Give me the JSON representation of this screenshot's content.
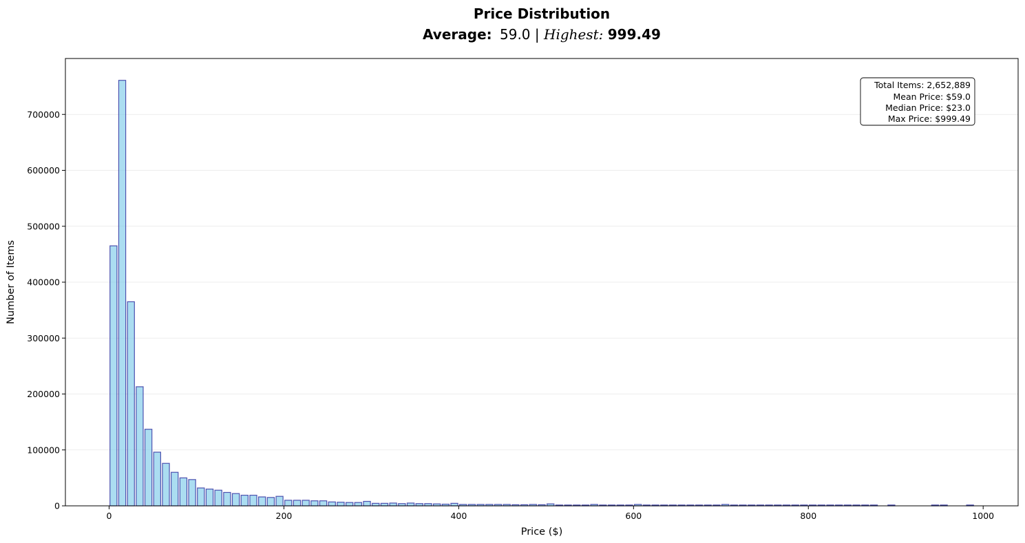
{
  "chart_data": {
    "type": "bar",
    "title": "Price Distribution",
    "subtitle": {
      "average_label": "Average:",
      "average_value": "59.0",
      "separator": "|",
      "highest_label": "Highest:",
      "highest_value": "999.49"
    },
    "xlabel": "Price ($)",
    "ylabel": "Number of Items",
    "xlim": [
      -50,
      1040
    ],
    "ylim": [
      0,
      800000
    ],
    "xticks": [
      0,
      200,
      400,
      600,
      800,
      1000
    ],
    "yticks": [
      0,
      100000,
      200000,
      300000,
      400000,
      500000,
      600000,
      700000
    ],
    "grid_axis": "y",
    "bar_width": 8,
    "x": [
      5,
      15,
      25,
      35,
      45,
      55,
      65,
      75,
      85,
      95,
      105,
      115,
      125,
      135,
      145,
      155,
      165,
      175,
      185,
      195,
      205,
      215,
      225,
      235,
      245,
      255,
      265,
      275,
      285,
      295,
      305,
      315,
      325,
      335,
      345,
      355,
      365,
      375,
      385,
      395,
      405,
      415,
      425,
      435,
      445,
      455,
      465,
      475,
      485,
      495,
      505,
      515,
      525,
      535,
      545,
      555,
      565,
      575,
      585,
      595,
      605,
      615,
      625,
      635,
      645,
      655,
      665,
      675,
      685,
      695,
      705,
      715,
      725,
      735,
      745,
      755,
      765,
      775,
      785,
      795,
      805,
      815,
      825,
      835,
      845,
      855,
      865,
      875,
      895,
      945,
      955,
      985
    ],
    "values": [
      465000,
      761000,
      365000,
      213000,
      137000,
      96000,
      76000,
      60000,
      50000,
      47000,
      32000,
      30000,
      28000,
      24000,
      22000,
      19000,
      19000,
      16000,
      15000,
      17000,
      10000,
      10000,
      10000,
      9000,
      9000,
      7000,
      6500,
      6000,
      6000,
      8000,
      4500,
      4500,
      5000,
      4000,
      5000,
      4000,
      4000,
      3500,
      3000,
      4500,
      2500,
      2500,
      2500,
      2500,
      2500,
      2500,
      2000,
      2000,
      2500,
      2000,
      3500,
      1500,
      1500,
      1500,
      1500,
      2500,
      1500,
      1500,
      1500,
      1500,
      2500,
      1500,
      1500,
      1500,
      1500,
      1500,
      1500,
      1500,
      1500,
      1500,
      2500,
      1500,
      1500,
      1500,
      1500,
      1500,
      1500,
      1500,
      1500,
      1500,
      1500,
      1500,
      1500,
      1500,
      1500,
      1500,
      1500,
      1500,
      1500,
      1500,
      1500,
      1500
    ],
    "stats_box": {
      "location": "top-right",
      "lines": [
        "Total Items: 2,652,889",
        "Mean Price: $59.0",
        "Median Price: $23.0",
        "Max Price: $999.49"
      ]
    }
  }
}
